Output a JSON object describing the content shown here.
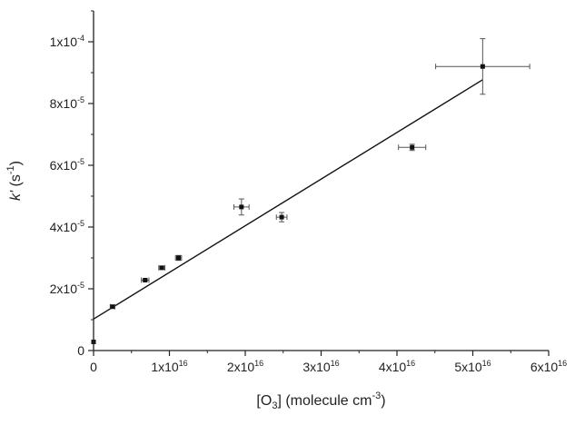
{
  "chart_data": {
    "type": "scatter",
    "title": "",
    "xlabel": {
      "parts": [
        {
          "text": "[O",
          "style": "normal"
        },
        {
          "text": "3",
          "style": "sub"
        },
        {
          "text": "] (molecule cm",
          "style": "normal"
        },
        {
          "text": "-3",
          "style": "sup"
        },
        {
          "text": ")",
          "style": "normal"
        }
      ]
    },
    "ylabel": {
      "parts": [
        {
          "text": "k'",
          "style": "italic"
        },
        {
          "text": " (s",
          "style": "normal"
        },
        {
          "text": "-1",
          "style": "sup"
        },
        {
          "text": ")",
          "style": "normal"
        }
      ]
    },
    "xlim": [
      0,
      6e+16
    ],
    "ylim": [
      0,
      0.00011
    ],
    "x_ticks": [
      {
        "value": 0,
        "base": "0",
        "exp": ""
      },
      {
        "value": 1e+16,
        "base": "1x10",
        "exp": "16"
      },
      {
        "value": 2e+16,
        "base": "2x10",
        "exp": "16"
      },
      {
        "value": 3e+16,
        "base": "3x10",
        "exp": "16"
      },
      {
        "value": 4e+16,
        "base": "4x10",
        "exp": "16"
      },
      {
        "value": 5e+16,
        "base": "5x10",
        "exp": "16"
      },
      {
        "value": 6e+16,
        "base": "6x10",
        "exp": "16"
      }
    ],
    "y_ticks": [
      {
        "value": 0,
        "base": "0",
        "exp": ""
      },
      {
        "value": 2e-05,
        "base": "2x10",
        "exp": "-5"
      },
      {
        "value": 4e-05,
        "base": "4x10",
        "exp": "-5"
      },
      {
        "value": 6e-05,
        "base": "6x10",
        "exp": "-5"
      },
      {
        "value": 8e-05,
        "base": "8x10",
        "exp": "-5"
      },
      {
        "value": 0.0001,
        "base": "1x10",
        "exp": "-4"
      }
    ],
    "points": [
      {
        "x": 0.0,
        "y": 2.8e-06,
        "xerr": 0,
        "yerr": 0
      },
      {
        "x": 2500000000000000.0,
        "y": 1.42e-05,
        "xerr": 300000000000000.0,
        "yerr": 4e-07
      },
      {
        "x": 6800000000000000.0,
        "y": 2.28e-05,
        "xerr": 500000000000000.0,
        "yerr": 4e-07
      },
      {
        "x": 9000000000000000.0,
        "y": 2.68e-05,
        "xerr": 400000000000000.0,
        "yerr": 5e-07
      },
      {
        "x": 1.12e+16,
        "y": 3e-05,
        "xerr": 400000000000000.0,
        "yerr": 8e-07
      },
      {
        "x": 1.95e+16,
        "y": 4.65e-05,
        "xerr": 1000000000000000.0,
        "yerr": 2.6e-06
      },
      {
        "x": 2.48e+16,
        "y": 4.32e-05,
        "xerr": 700000000000000.0,
        "yerr": 1.5e-06
      },
      {
        "x": 4.2e+16,
        "y": 6.58e-05,
        "xerr": 1800000000000000.0,
        "yerr": 1e-06
      },
      {
        "x": 5.13e+16,
        "y": 9.2e-05,
        "xerr": 6200000000000000.0,
        "yerr": 9e-06
      }
    ],
    "fit_line": {
      "x_start": 0,
      "y_start": 1.02e-05,
      "x_end": 5.13e+16,
      "y_end": 8.77e-05
    },
    "grid": false,
    "colors": {
      "axis": "#222222",
      "marker": "#111111",
      "line": "#111111",
      "errorbar": "#555555"
    }
  }
}
